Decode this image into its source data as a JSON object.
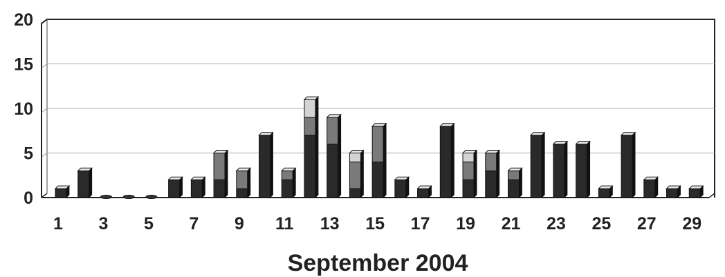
{
  "chart_data": {
    "type": "bar",
    "style": "3d-stacked-bar",
    "title": "",
    "xlabel": "September 2004",
    "ylabel": "",
    "ylim": [
      0,
      20
    ],
    "y_ticks": [
      "0",
      "5",
      "10",
      "15",
      "20"
    ],
    "x_tick_labels": [
      "1",
      "3",
      "5",
      "7",
      "9",
      "11",
      "13",
      "15",
      "17",
      "19",
      "21",
      "23",
      "25",
      "27",
      "29"
    ],
    "grid": true,
    "legend": "none",
    "categories": [
      1,
      2,
      3,
      4,
      5,
      6,
      7,
      8,
      9,
      10,
      11,
      12,
      13,
      14,
      15,
      16,
      17,
      18,
      19,
      20,
      21,
      22,
      23,
      24,
      25,
      26,
      27,
      28,
      29
    ],
    "series": [
      {
        "color": "#2a2a2a",
        "values": [
          1,
          3,
          0,
          0,
          0,
          2,
          2,
          2,
          1,
          7,
          2,
          7,
          6,
          1,
          4,
          2,
          1,
          8,
          2,
          3,
          2,
          7,
          6,
          6,
          1,
          7,
          2,
          1,
          1
        ]
      },
      {
        "color": "#7a7a7a",
        "values": [
          0,
          0,
          0,
          0,
          0,
          0,
          0,
          3,
          2,
          0,
          1,
          2,
          3,
          3,
          4,
          0,
          0,
          0,
          2,
          2,
          1,
          0,
          0,
          0,
          0,
          0,
          0,
          0,
          0
        ]
      },
      {
        "color": "#d4d4d4",
        "values": [
          0,
          0,
          0,
          0,
          0,
          0,
          0,
          0,
          0,
          0,
          0,
          2,
          0,
          1,
          0,
          0,
          0,
          0,
          1,
          0,
          0,
          0,
          0,
          0,
          0,
          0,
          0,
          0,
          0
        ]
      }
    ]
  }
}
